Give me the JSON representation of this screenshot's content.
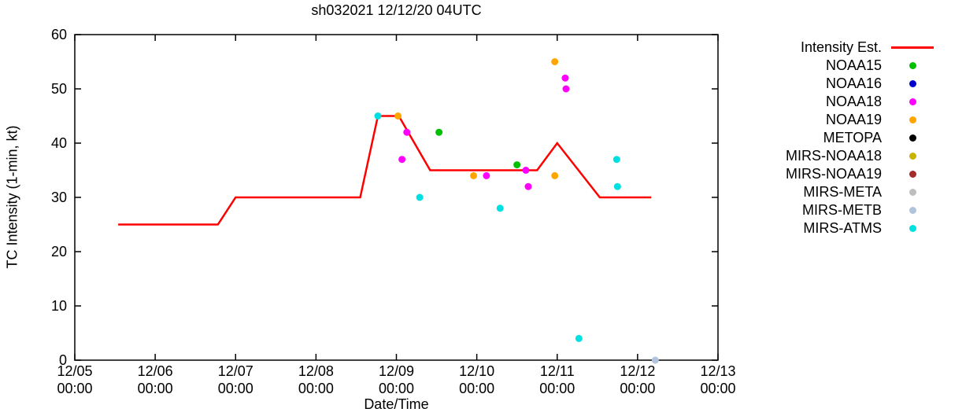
{
  "chart_data": {
    "type": "line+scatter",
    "title": "sh032021 12/12/20 04UTC",
    "xlabel": "Date/Time",
    "ylabel": "TC Intensity (1-min, kt)",
    "grid": false,
    "legend_position": "right",
    "x_axis": {
      "unit": "days since 12/05 00:00",
      "range": [
        0,
        8
      ],
      "ticks": [
        {
          "day": 0,
          "date": "12/05",
          "time": "00:00"
        },
        {
          "day": 1,
          "date": "12/06",
          "time": "00:00"
        },
        {
          "day": 2,
          "date": "12/07",
          "time": "00:00"
        },
        {
          "day": 3,
          "date": "12/08",
          "time": "00:00"
        },
        {
          "day": 4,
          "date": "12/09",
          "time": "00:00"
        },
        {
          "day": 5,
          "date": "12/10",
          "time": "00:00"
        },
        {
          "day": 6,
          "date": "12/11",
          "time": "00:00"
        },
        {
          "day": 7,
          "date": "12/12",
          "time": "00:00"
        },
        {
          "day": 8,
          "date": "12/13",
          "time": "00:00"
        }
      ]
    },
    "y_axis": {
      "range": [
        0,
        60
      ],
      "ticks": [
        0,
        10,
        20,
        30,
        40,
        50,
        60
      ]
    },
    "line_series": {
      "name": "Intensity Est.",
      "color": "#ff0000",
      "points_day_kt": [
        [
          0.54,
          25
        ],
        [
          1.78,
          25
        ],
        [
          2.0,
          30
        ],
        [
          3.55,
          30
        ],
        [
          3.77,
          45
        ],
        [
          4.03,
          45
        ],
        [
          4.42,
          35
        ],
        [
          5.75,
          35
        ],
        [
          6.0,
          40
        ],
        [
          6.53,
          30
        ],
        [
          7.17,
          30
        ]
      ]
    },
    "scatter_series": [
      {
        "name": "NOAA15",
        "color": "#00c000",
        "points_day_kt": [
          [
            4.53,
            42
          ],
          [
            5.5,
            36
          ]
        ]
      },
      {
        "name": "NOAA16",
        "color": "#0000cd",
        "points_day_kt": []
      },
      {
        "name": "NOAA18",
        "color": "#ff00ff",
        "points_day_kt": [
          [
            4.07,
            37
          ],
          [
            4.13,
            42
          ],
          [
            5.12,
            34
          ],
          [
            5.61,
            35
          ],
          [
            5.64,
            32
          ],
          [
            6.1,
            52
          ],
          [
            6.11,
            50
          ]
        ]
      },
      {
        "name": "NOAA19",
        "color": "#ffa500",
        "points_day_kt": [
          [
            4.02,
            45
          ],
          [
            4.96,
            34
          ],
          [
            5.97,
            55
          ],
          [
            5.97,
            34
          ]
        ]
      },
      {
        "name": "METOPA",
        "color": "#000000",
        "points_day_kt": []
      },
      {
        "name": "MIRS-NOAA18",
        "color": "#c8b400",
        "points_day_kt": []
      },
      {
        "name": "MIRS-NOAA19",
        "color": "#a52a2a",
        "points_day_kt": []
      },
      {
        "name": "MIRS-META",
        "color": "#bebebe",
        "points_day_kt": []
      },
      {
        "name": "MIRS-METB",
        "color": "#b0c4de",
        "points_day_kt": [
          [
            7.22,
            0
          ]
        ]
      },
      {
        "name": "MIRS-ATMS",
        "color": "#00e0e0",
        "points_day_kt": [
          [
            3.77,
            45
          ],
          [
            4.29,
            30
          ],
          [
            5.29,
            28
          ],
          [
            6.27,
            4
          ],
          [
            6.74,
            37
          ],
          [
            6.75,
            32
          ]
        ]
      }
    ]
  }
}
